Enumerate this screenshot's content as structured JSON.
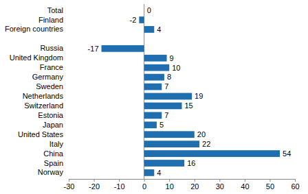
{
  "chart_data": {
    "type": "bar",
    "orientation": "horizontal",
    "categories": [
      "Total",
      "Finland",
      "Foreign countries",
      null,
      "Russia",
      "United Kingdom",
      "France",
      "Germany",
      "Sweden",
      "Netherlands",
      "Switzerland",
      "Estonia",
      "Japan",
      "United States",
      "Italy",
      "China",
      "Spain",
      "Norway"
    ],
    "values": [
      0,
      -2,
      4,
      null,
      -17,
      9,
      10,
      8,
      7,
      19,
      15,
      7,
      5,
      20,
      22,
      54,
      16,
      4
    ],
    "color": "#1f6eb0",
    "xlim": [
      -30,
      60
    ],
    "xticks": [
      -30,
      -20,
      -10,
      0,
      10,
      20,
      30,
      40,
      50,
      60
    ],
    "grid": false,
    "data_labels": true
  }
}
